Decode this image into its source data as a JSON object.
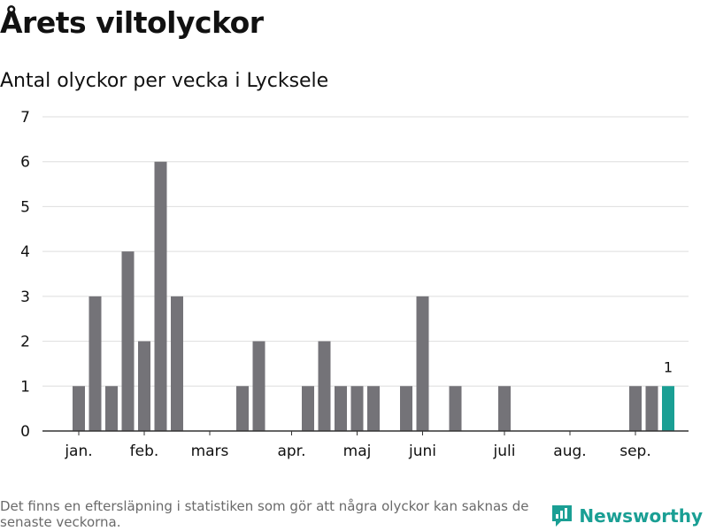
{
  "title": "Årets viltolyckor",
  "subtitle": "Antal olyckor per vecka i Lycksele",
  "footnote": "Det finns en eftersläpning i statistiken som gör att några olyckor kan saknas de senaste veckorna.",
  "brand": {
    "name": "Newsworthy",
    "icon": "bar-chart-speech-bubble-icon"
  },
  "colors": {
    "bar": "#747378",
    "highlight": "#1a9f94",
    "grid": "#dedede",
    "axis": "#333333",
    "text": "#111111"
  },
  "chart_data": {
    "type": "bar",
    "title": "Antal olyckor per vecka i Lycksele",
    "xlabel": "",
    "ylabel": "",
    "ylim": [
      0,
      7
    ],
    "yticks": [
      0,
      1,
      2,
      3,
      4,
      5,
      6,
      7
    ],
    "grid": true,
    "x_tick_labels": [
      "jan.",
      "feb.",
      "mars",
      "apr.",
      "maj",
      "juni",
      "juli",
      "aug.",
      "sep."
    ],
    "x_tick_label_weeks": [
      1,
      5,
      9,
      14,
      18,
      22,
      27,
      31,
      35
    ],
    "weeks": [
      1,
      2,
      3,
      4,
      5,
      6,
      7,
      8,
      9,
      10,
      11,
      12,
      13,
      14,
      15,
      16,
      17,
      18,
      19,
      20,
      21,
      22,
      23,
      24,
      25,
      26,
      27,
      28,
      29,
      30,
      31,
      32,
      33,
      34,
      35,
      36,
      37
    ],
    "values": [
      1,
      3,
      1,
      4,
      2,
      6,
      3,
      0,
      0,
      0,
      1,
      2,
      0,
      0,
      1,
      2,
      1,
      1,
      1,
      0,
      1,
      3,
      0,
      1,
      0,
      0,
      1,
      0,
      0,
      0,
      0,
      0,
      0,
      0,
      1,
      1,
      1
    ],
    "highlight_index": 36,
    "data_labels": [
      {
        "index": 36,
        "text": "1"
      }
    ]
  }
}
